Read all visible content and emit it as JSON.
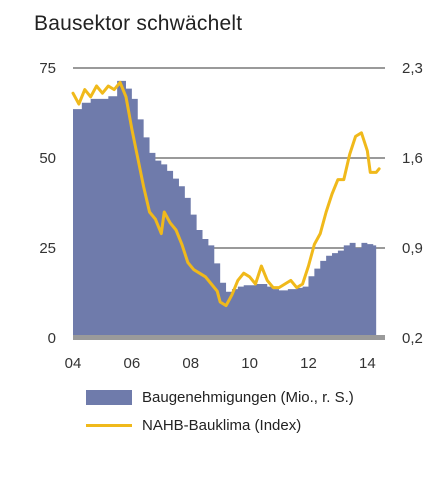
{
  "chart_data": {
    "type": "area+line",
    "title": "Bausektor schwächelt",
    "x_ticks": [
      "04",
      "06",
      "08",
      "10",
      "12",
      "14"
    ],
    "x_range": [
      2004,
      2014.6
    ],
    "left_axis": {
      "ticks": [
        "75",
        "50",
        "25",
        "0"
      ],
      "values": [
        75,
        50,
        25,
        0
      ],
      "range": [
        0,
        75
      ]
    },
    "right_axis": {
      "ticks": [
        "2,3",
        "1,6",
        "0,9",
        "0,2"
      ],
      "values": [
        2.3,
        1.6,
        0.9,
        0.2
      ],
      "range": [
        0.2,
        2.3
      ]
    },
    "grid": true,
    "series": [
      {
        "name": "Baugenehmigungen (Mio., r. S.)",
        "kind": "area",
        "axis": "right",
        "color": "#6f7bab",
        "points": [
          [
            2004.0,
            1.98
          ],
          [
            2004.3,
            2.03
          ],
          [
            2004.6,
            2.06
          ],
          [
            2004.9,
            2.06
          ],
          [
            2005.2,
            2.08
          ],
          [
            2005.5,
            2.2
          ],
          [
            2005.8,
            2.14
          ],
          [
            2006.0,
            2.06
          ],
          [
            2006.2,
            1.9
          ],
          [
            2006.4,
            1.76
          ],
          [
            2006.6,
            1.64
          ],
          [
            2006.8,
            1.58
          ],
          [
            2007.0,
            1.55
          ],
          [
            2007.2,
            1.5
          ],
          [
            2007.4,
            1.44
          ],
          [
            2007.6,
            1.38
          ],
          [
            2007.8,
            1.29
          ],
          [
            2008.0,
            1.16
          ],
          [
            2008.2,
            1.04
          ],
          [
            2008.4,
            0.97
          ],
          [
            2008.6,
            0.92
          ],
          [
            2008.8,
            0.78
          ],
          [
            2009.0,
            0.63
          ],
          [
            2009.2,
            0.56
          ],
          [
            2009.4,
            0.58
          ],
          [
            2009.6,
            0.6
          ],
          [
            2009.8,
            0.61
          ],
          [
            2010.0,
            0.61
          ],
          [
            2010.2,
            0.62
          ],
          [
            2010.4,
            0.62
          ],
          [
            2010.6,
            0.6
          ],
          [
            2010.8,
            0.58
          ],
          [
            2011.0,
            0.57
          ],
          [
            2011.3,
            0.58
          ],
          [
            2011.6,
            0.59
          ],
          [
            2011.8,
            0.6
          ],
          [
            2012.0,
            0.68
          ],
          [
            2012.2,
            0.74
          ],
          [
            2012.4,
            0.8
          ],
          [
            2012.6,
            0.84
          ],
          [
            2012.8,
            0.86
          ],
          [
            2013.0,
            0.88
          ],
          [
            2013.2,
            0.92
          ],
          [
            2013.4,
            0.94
          ],
          [
            2013.6,
            0.9
          ],
          [
            2013.8,
            0.94
          ],
          [
            2014.0,
            0.93
          ],
          [
            2014.2,
            0.92
          ],
          [
            2014.3,
            0.92
          ]
        ]
      },
      {
        "name": "NAHB-Bauklima (Index)",
        "kind": "line",
        "axis": "left",
        "color": "#f0b91b",
        "points": [
          [
            2004.0,
            68
          ],
          [
            2004.2,
            65
          ],
          [
            2004.4,
            69
          ],
          [
            2004.6,
            67
          ],
          [
            2004.8,
            70
          ],
          [
            2005.0,
            68
          ],
          [
            2005.2,
            70
          ],
          [
            2005.4,
            69
          ],
          [
            2005.6,
            71
          ],
          [
            2005.8,
            67
          ],
          [
            2006.0,
            58
          ],
          [
            2006.2,
            50
          ],
          [
            2006.4,
            42
          ],
          [
            2006.6,
            35
          ],
          [
            2006.8,
            33
          ],
          [
            2007.0,
            29
          ],
          [
            2007.1,
            35
          ],
          [
            2007.3,
            32
          ],
          [
            2007.5,
            30
          ],
          [
            2007.7,
            26
          ],
          [
            2007.9,
            21
          ],
          [
            2008.1,
            19
          ],
          [
            2008.3,
            18
          ],
          [
            2008.5,
            17
          ],
          [
            2008.7,
            15
          ],
          [
            2008.9,
            13
          ],
          [
            2009.0,
            10
          ],
          [
            2009.2,
            9
          ],
          [
            2009.4,
            12
          ],
          [
            2009.6,
            16
          ],
          [
            2009.8,
            18
          ],
          [
            2010.0,
            17
          ],
          [
            2010.2,
            15
          ],
          [
            2010.4,
            20
          ],
          [
            2010.6,
            16
          ],
          [
            2010.8,
            14
          ],
          [
            2011.0,
            14
          ],
          [
            2011.2,
            15
          ],
          [
            2011.4,
            16
          ],
          [
            2011.6,
            14
          ],
          [
            2011.8,
            15
          ],
          [
            2012.0,
            20
          ],
          [
            2012.2,
            26
          ],
          [
            2012.4,
            29
          ],
          [
            2012.6,
            35
          ],
          [
            2012.8,
            40
          ],
          [
            2013.0,
            44
          ],
          [
            2013.2,
            44
          ],
          [
            2013.4,
            51
          ],
          [
            2013.6,
            56
          ],
          [
            2013.8,
            57
          ],
          [
            2014.0,
            52
          ],
          [
            2014.1,
            46
          ],
          [
            2014.3,
            46
          ],
          [
            2014.4,
            47
          ]
        ]
      }
    ],
    "legend_position": "bottom-left"
  }
}
